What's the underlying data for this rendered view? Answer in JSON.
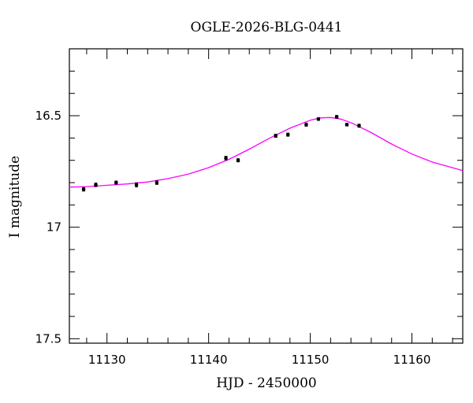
{
  "chart_data": {
    "type": "scatter",
    "title": "OGLE-2026-BLG-0441",
    "xlabel": "HJD - 2450000",
    "ylabel": "I magnitude",
    "xlim": [
      11126.3,
      11165
    ],
    "ylim": [
      17.52,
      16.2
    ],
    "y_inverted": true,
    "x_ticks": [
      11130,
      11140,
      11150,
      11160
    ],
    "x_tick_labels": [
      "11130",
      "11140",
      "11150",
      "11160"
    ],
    "y_ticks": [
      16.5,
      17,
      17.5
    ],
    "y_tick_labels": [
      "16.5",
      "17",
      "17.5"
    ],
    "grid": false,
    "legend": "none",
    "series": [
      {
        "kind": "points",
        "color": "#000000",
        "x": [
          11127.7,
          11128.9,
          11130.9,
          11132.9,
          11134.9,
          11141.7,
          11142.9,
          11146.6,
          11147.8,
          11149.6,
          11150.8,
          11152.6,
          11153.6,
          11154.8
        ],
        "y": [
          16.83,
          16.81,
          16.8,
          16.81,
          16.8,
          16.69,
          16.7,
          16.59,
          16.585,
          16.54,
          16.515,
          16.505,
          16.54,
          16.545
        ],
        "yerr": [
          0.008,
          0.008,
          0.007,
          0.009,
          0.008,
          0.008,
          0.007,
          0.007,
          0.007,
          0.007,
          0.006,
          0.006,
          0.006,
          0.007
        ]
      },
      {
        "kind": "line",
        "color": "#ff00ff",
        "x": [
          11126.3,
          11128,
          11130,
          11132,
          11134,
          11136,
          11138,
          11140,
          11142,
          11144,
          11146,
          11148,
          11150,
          11151,
          11152,
          11153,
          11154,
          11156,
          11158,
          11160,
          11162,
          11165
        ],
        "y": [
          16.82,
          16.818,
          16.812,
          16.806,
          16.797,
          16.782,
          16.762,
          16.733,
          16.696,
          16.65,
          16.601,
          16.556,
          16.52,
          16.51,
          16.508,
          16.515,
          16.531,
          16.576,
          16.627,
          16.672,
          16.708,
          16.746
        ]
      }
    ]
  }
}
